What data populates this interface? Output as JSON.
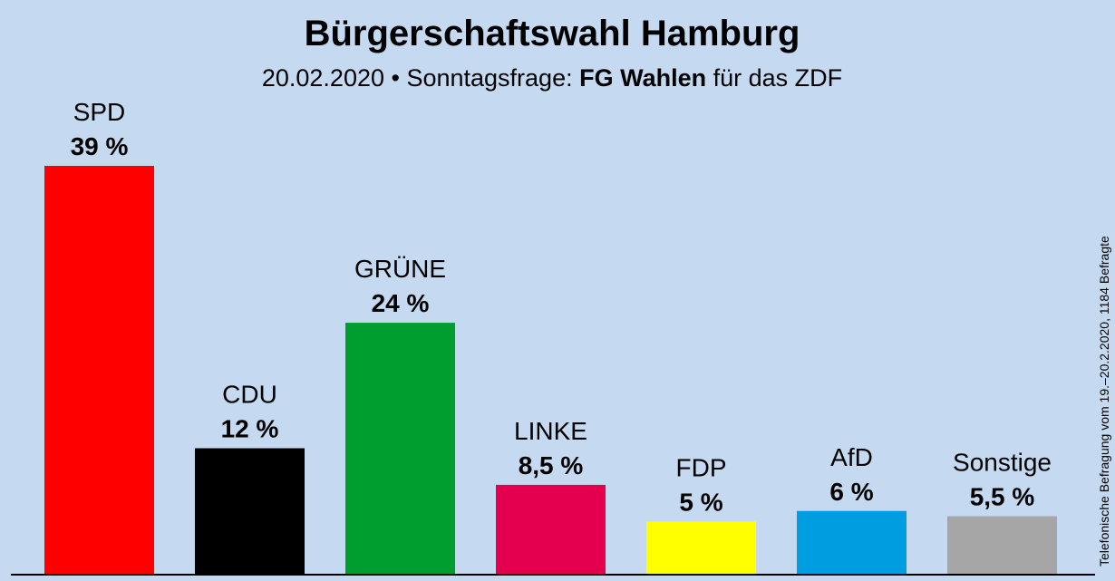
{
  "chart_data": {
    "type": "bar",
    "title": "Bürgerschaftswahl Hamburg",
    "subtitle": {
      "prefix": "20.02.2020 • Sonntagsfrage: ",
      "institute": "FG Wahlen",
      "suffix": " für das ZDF"
    },
    "source_note": "Telefonische Befragung vom 19.–20.2.2020, 1184 Befragte",
    "categories": [
      "SPD",
      "CDU",
      "GRÜNE",
      "LINKE",
      "FDP",
      "AfD",
      "Sonstige"
    ],
    "values": [
      39,
      12,
      24,
      8.5,
      5,
      6,
      5.5
    ],
    "value_labels": [
      "39 %",
      "12 %",
      "24 %",
      "8,5 %",
      "5 %",
      "6 %",
      "5,5 %"
    ],
    "colors": [
      "#ff0000",
      "#000000",
      "#009e2f",
      "#e4004f",
      "#ffff00",
      "#009ee0",
      "#a6a6a6"
    ],
    "ylim": [
      0,
      39
    ],
    "grid": false,
    "xlabel": "",
    "ylabel": ""
  }
}
